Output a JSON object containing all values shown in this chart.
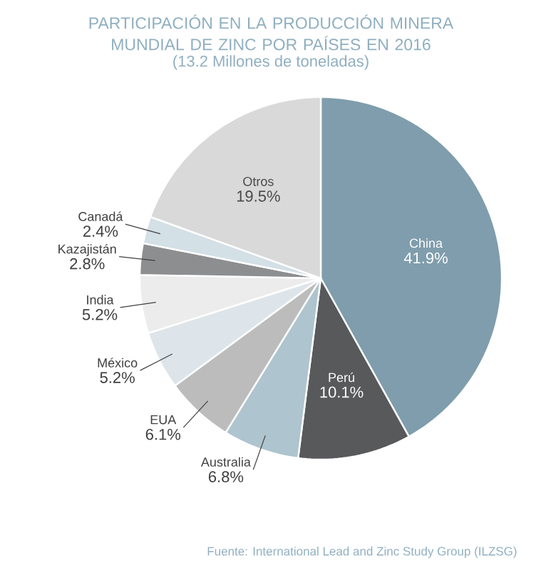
{
  "chart_data": {
    "type": "pie",
    "title": "PARTICIPACIÓN EN LA PRODUCCIÓN MINERA MUNDIAL DE ZINC POR PAÍSES EN 2016",
    "subtitle": "(13.2 Millones de toneladas)",
    "categories": [
      "China",
      "Perú",
      "Australia",
      "EUA",
      "México",
      "India",
      "Kazajistán",
      "Canadá",
      "Otros"
    ],
    "values": [
      41.9,
      10.1,
      6.8,
      6.1,
      5.2,
      5.2,
      2.8,
      2.4,
      19.5
    ],
    "value_labels": [
      "41.9%",
      "10.1%",
      "6.8%",
      "6.1%",
      "5.2%",
      "5.2%",
      "2.8%",
      "2.4%",
      "19.5%"
    ],
    "colors": [
      "#7f9dac",
      "#58595b",
      "#aec4ce",
      "#bcbcbc",
      "#dde5ea",
      "#ececec",
      "#8d8e90",
      "#d3e0e6",
      "#d9d9d9"
    ],
    "annotations": [
      "Fuente: International Lead and Zinc Study Group (ILZSG)"
    ]
  }
}
